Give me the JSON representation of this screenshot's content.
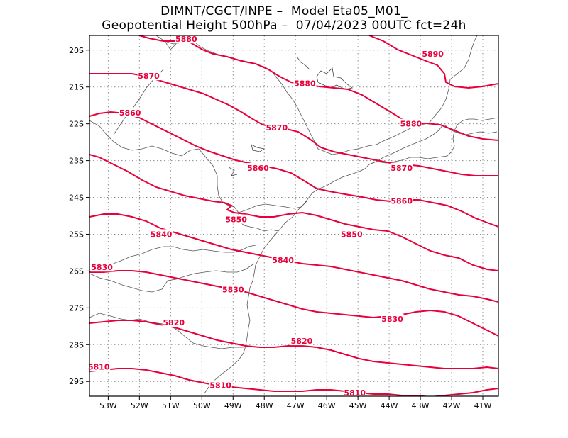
{
  "title": {
    "line1": "DIMNT/CGCT/INPE –  Model Eta05_M01_",
    "line2": "Geopotential Height 500hPa –  07/04/2023 00UTC fct=24h"
  },
  "axes": {
    "lon_ticks": [
      "53W",
      "52W",
      "51W",
      "50W",
      "49W",
      "48W",
      "47W",
      "46W",
      "45W",
      "44W",
      "43W",
      "42W",
      "41W"
    ],
    "lat_ticks": [
      "20S",
      "21S",
      "22S",
      "23S",
      "24S",
      "25S",
      "26S",
      "27S",
      "28S",
      "29S"
    ],
    "lon_range": [
      -53.6,
      -40.5
    ],
    "lat_range": [
      -29.4,
      -19.6
    ]
  },
  "colors": {
    "contour": "#e8003a",
    "contour_label_dark": "#e8003a",
    "coast": "#555555",
    "grid": "#8a8a8a"
  },
  "contours": [
    {
      "label": "5890",
      "label_pos": [
        -42.6,
        -20.1
      ]
    },
    {
      "label": "5880",
      "label_pos": [
        -50.5,
        -19.7
      ]
    },
    {
      "label": "5880",
      "label_pos": [
        -46.7,
        -20.9
      ]
    },
    {
      "label": "5880",
      "label_pos": [
        -43.3,
        -22.0
      ]
    },
    {
      "label": "5870",
      "label_pos": [
        -51.7,
        -20.7
      ]
    },
    {
      "label": "5870",
      "label_pos": [
        -47.6,
        -22.1
      ]
    },
    {
      "label": "5870",
      "label_pos": [
        -43.6,
        -23.2
      ]
    },
    {
      "label": "5860",
      "label_pos": [
        -52.3,
        -21.7
      ]
    },
    {
      "label": "5860",
      "label_pos": [
        -48.2,
        -23.2
      ]
    },
    {
      "label": "5860",
      "label_pos": [
        -43.6,
        -24.1
      ]
    },
    {
      "label": "5850",
      "label_pos": [
        -48.9,
        -24.6
      ]
    },
    {
      "label": "5850",
      "label_pos": [
        -45.2,
        -25.0
      ]
    },
    {
      "label": "5840",
      "label_pos": [
        -51.3,
        -25.0
      ]
    },
    {
      "label": "5840",
      "label_pos": [
        -47.4,
        -25.7
      ]
    },
    {
      "label": "5830",
      "label_pos": [
        -53.2,
        -25.9
      ]
    },
    {
      "label": "5830",
      "label_pos": [
        -49.0,
        -26.5
      ]
    },
    {
      "label": "5830",
      "label_pos": [
        -43.9,
        -27.3
      ]
    },
    {
      "label": "5820",
      "label_pos": [
        -50.9,
        -27.4
      ]
    },
    {
      "label": "5820",
      "label_pos": [
        -46.8,
        -27.9
      ]
    },
    {
      "label": "5810",
      "label_pos": [
        -53.3,
        -28.6
      ]
    },
    {
      "label": "5810",
      "label_pos": [
        -49.4,
        -29.1
      ]
    },
    {
      "label": "5810",
      "label_pos": [
        -45.1,
        -29.3
      ]
    }
  ]
}
